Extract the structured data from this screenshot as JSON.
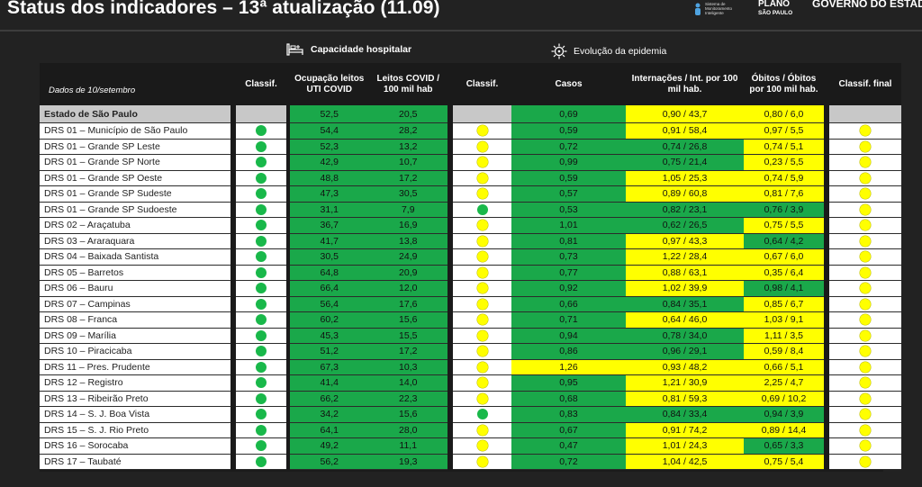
{
  "header": {
    "title": "Status dos indicadores – 13ª atualização (11.09)",
    "logo_sistema": "Sistema de Monitoramento Inteligente",
    "logo_plano": "PLANO",
    "logo_plano_sub": "SÃO PAULO",
    "logo_gov": "GOVERNO DO ESTADO"
  },
  "sections": {
    "capacidade": "Capacidade hospitalar",
    "evolucao": "Evolução da epidemia"
  },
  "columns": {
    "date_label": "Dados de 10/setembro",
    "classif1": "Classif.",
    "ocupacao": "Ocupação leitos UTI COVID",
    "leitos": "Leitos COVID / 100 mil hab",
    "classif2": "Classif.",
    "casos": "Casos",
    "internacoes": "Internações / Int. por 100 mil hab.",
    "obitos": "Óbitos / Óbitos por 100 mil hab.",
    "classif_final": "Classif. final"
  },
  "colors": {
    "green": "#1aa84a",
    "yellow": "#ffff00",
    "gray": "#c8c8c8"
  },
  "state_row": {
    "name": "Estado de São Paulo",
    "ocupacao": "52,5",
    "leitos": "20,5",
    "casos": "0,69",
    "internacoes": "0,90 / 43,7",
    "obitos": "0,80 / 6,0"
  },
  "rows": [
    {
      "name": "DRS 01 – Município de São Paulo",
      "ocupacao": "54,4",
      "leitos": "28,2",
      "c1": "green",
      "casos": "0,59",
      "casos_c": "green",
      "internacoes": "0,91 / 58,4",
      "int_c": "yellow",
      "obitos": "0,97 / 5,5",
      "obi_c": "yellow",
      "c2": "yellow",
      "cf": "yellow"
    },
    {
      "name": "DRS 01 – Grande SP Leste",
      "ocupacao": "52,3",
      "leitos": "13,2",
      "c1": "green",
      "casos": "0,72",
      "casos_c": "green",
      "internacoes": "0,74 / 26,8",
      "int_c": "green",
      "obitos": "0,74 / 5,1",
      "obi_c": "yellow",
      "c2": "yellow",
      "cf": "yellow"
    },
    {
      "name": "DRS 01 – Grande SP Norte",
      "ocupacao": "42,9",
      "leitos": "10,7",
      "c1": "green",
      "casos": "0,99",
      "casos_c": "green",
      "internacoes": "0,75 / 21,4",
      "int_c": "green",
      "obitos": "0,23 / 5,5",
      "obi_c": "yellow",
      "c2": "yellow",
      "cf": "yellow"
    },
    {
      "name": "DRS 01 – Grande SP Oeste",
      "ocupacao": "48,8",
      "leitos": "17,2",
      "c1": "green",
      "casos": "0,59",
      "casos_c": "green",
      "internacoes": "1,05 / 25,3",
      "int_c": "yellow",
      "obitos": "0,74 / 5,9",
      "obi_c": "yellow",
      "c2": "yellow",
      "cf": "yellow"
    },
    {
      "name": "DRS 01 – Grande SP Sudeste",
      "ocupacao": "47,3",
      "leitos": "30,5",
      "c1": "green",
      "casos": "0,57",
      "casos_c": "green",
      "internacoes": "0,89 / 60,8",
      "int_c": "yellow",
      "obitos": "0,81 / 7,6",
      "obi_c": "yellow",
      "c2": "yellow",
      "cf": "yellow"
    },
    {
      "name": "DRS 01 – Grande SP Sudoeste",
      "ocupacao": "31,1",
      "leitos": "7,9",
      "c1": "green",
      "casos": "0,53",
      "casos_c": "green",
      "internacoes": "0,82 / 23,1",
      "int_c": "green",
      "obitos": "0,76 / 3,9",
      "obi_c": "green",
      "c2": "green",
      "cf": "yellow"
    },
    {
      "name": "DRS 02 – Araçatuba",
      "ocupacao": "36,7",
      "leitos": "16,9",
      "c1": "green",
      "casos": "1,01",
      "casos_c": "green",
      "internacoes": "0,62 / 26,5",
      "int_c": "green",
      "obitos": "0,75 / 5,5",
      "obi_c": "yellow",
      "c2": "yellow",
      "cf": "yellow"
    },
    {
      "name": "DRS 03 – Araraquara",
      "ocupacao": "41,7",
      "leitos": "13,8",
      "c1": "green",
      "casos": "0,81",
      "casos_c": "green",
      "internacoes": "0,97 / 43,3",
      "int_c": "yellow",
      "obitos": "0,64 / 4,2",
      "obi_c": "green",
      "c2": "yellow",
      "cf": "yellow"
    },
    {
      "name": "DRS 04 – Baixada Santista",
      "ocupacao": "30,5",
      "leitos": "24,9",
      "c1": "green",
      "casos": "0,73",
      "casos_c": "green",
      "internacoes": "1,22 / 28,4",
      "int_c": "yellow",
      "obitos": "0,67 / 6,0",
      "obi_c": "yellow",
      "c2": "yellow",
      "cf": "yellow"
    },
    {
      "name": "DRS 05 – Barretos",
      "ocupacao": "64,8",
      "leitos": "20,9",
      "c1": "green",
      "casos": "0,77",
      "casos_c": "green",
      "internacoes": "0,88 / 63,1",
      "int_c": "yellow",
      "obitos": "0,35 / 6,4",
      "obi_c": "yellow",
      "c2": "yellow",
      "cf": "yellow"
    },
    {
      "name": "DRS 06 – Bauru",
      "ocupacao": "66,4",
      "leitos": "12,0",
      "c1": "green",
      "casos": "0,92",
      "casos_c": "green",
      "internacoes": "1,02 / 39,9",
      "int_c": "yellow",
      "obitos": "0,98 / 4,1",
      "obi_c": "green",
      "c2": "yellow",
      "cf": "yellow"
    },
    {
      "name": "DRS 07 – Campinas",
      "ocupacao": "56,4",
      "leitos": "17,6",
      "c1": "green",
      "casos": "0,66",
      "casos_c": "green",
      "internacoes": "0,84 / 35,1",
      "int_c": "green",
      "obitos": "0,85 / 6,7",
      "obi_c": "yellow",
      "c2": "yellow",
      "cf": "yellow"
    },
    {
      "name": "DRS 08 – Franca",
      "ocupacao": "60,2",
      "leitos": "15,6",
      "c1": "green",
      "casos": "0,71",
      "casos_c": "green",
      "internacoes": "0,64 / 46,0",
      "int_c": "yellow",
      "obitos": "1,03 / 9,1",
      "obi_c": "yellow",
      "c2": "yellow",
      "cf": "yellow"
    },
    {
      "name": "DRS 09 – Marília",
      "ocupacao": "45,3",
      "leitos": "15,5",
      "c1": "green",
      "casos": "0,94",
      "casos_c": "green",
      "internacoes": "0,78 / 34,0",
      "int_c": "green",
      "obitos": "1,11 / 3,5",
      "obi_c": "yellow",
      "c2": "yellow",
      "cf": "yellow"
    },
    {
      "name": "DRS 10 – Piracicaba",
      "ocupacao": "51,2",
      "leitos": "17,2",
      "c1": "green",
      "casos": "0,86",
      "casos_c": "green",
      "internacoes": "0,96 / 29,1",
      "int_c": "green",
      "obitos": "0,59 / 8,4",
      "obi_c": "yellow",
      "c2": "yellow",
      "cf": "yellow"
    },
    {
      "name": "DRS 11 – Pres. Prudente",
      "ocupacao": "67,3",
      "leitos": "10,3",
      "c1": "green",
      "casos": "1,26",
      "casos_c": "yellow",
      "internacoes": "0,93 / 48,2",
      "int_c": "yellow",
      "obitos": "0,66 / 5,1",
      "obi_c": "yellow",
      "c2": "yellow",
      "cf": "yellow"
    },
    {
      "name": "DRS 12 – Registro",
      "ocupacao": "41,4",
      "leitos": "14,0",
      "c1": "green",
      "casos": "0,95",
      "casos_c": "green",
      "internacoes": "1,21 / 30,9",
      "int_c": "yellow",
      "obitos": "2,25 / 4,7",
      "obi_c": "yellow",
      "c2": "yellow",
      "cf": "yellow"
    },
    {
      "name": "DRS 13 – Ribeirão Preto",
      "ocupacao": "66,2",
      "leitos": "22,3",
      "c1": "green",
      "casos": "0,68",
      "casos_c": "green",
      "internacoes": "0,81 / 59,3",
      "int_c": "yellow",
      "obitos": "0,69 / 10,2",
      "obi_c": "yellow",
      "c2": "yellow",
      "cf": "yellow"
    },
    {
      "name": "DRS 14 – S. J. Boa Vista",
      "ocupacao": "34,2",
      "leitos": "15,6",
      "c1": "green",
      "casos": "0,83",
      "casos_c": "green",
      "internacoes": "0,84 / 33,4",
      "int_c": "green",
      "obitos": "0,94 / 3,9",
      "obi_c": "green",
      "c2": "green",
      "cf": "yellow"
    },
    {
      "name": "DRS 15 – S. J. Rio Preto",
      "ocupacao": "64,1",
      "leitos": "28,0",
      "c1": "green",
      "casos": "0,67",
      "casos_c": "green",
      "internacoes": "0,91 / 74,2",
      "int_c": "yellow",
      "obitos": "0,89 / 14,4",
      "obi_c": "yellow",
      "c2": "yellow",
      "cf": "yellow"
    },
    {
      "name": "DRS 16 – Sorocaba",
      "ocupacao": "49,2",
      "leitos": "11,1",
      "c1": "green",
      "casos": "0,47",
      "casos_c": "green",
      "internacoes": "1,01 / 24,3",
      "int_c": "yellow",
      "obitos": "0,65 / 3,3",
      "obi_c": "green",
      "c2": "yellow",
      "cf": "yellow"
    },
    {
      "name": "DRS 17 – Taubaté",
      "ocupacao": "56,2",
      "leitos": "19,3",
      "c1": "green",
      "casos": "0,72",
      "casos_c": "green",
      "internacoes": "1,04 / 42,5",
      "int_c": "yellow",
      "obitos": "0,75 / 5,4",
      "obi_c": "yellow",
      "c2": "yellow",
      "cf": "yellow"
    }
  ]
}
